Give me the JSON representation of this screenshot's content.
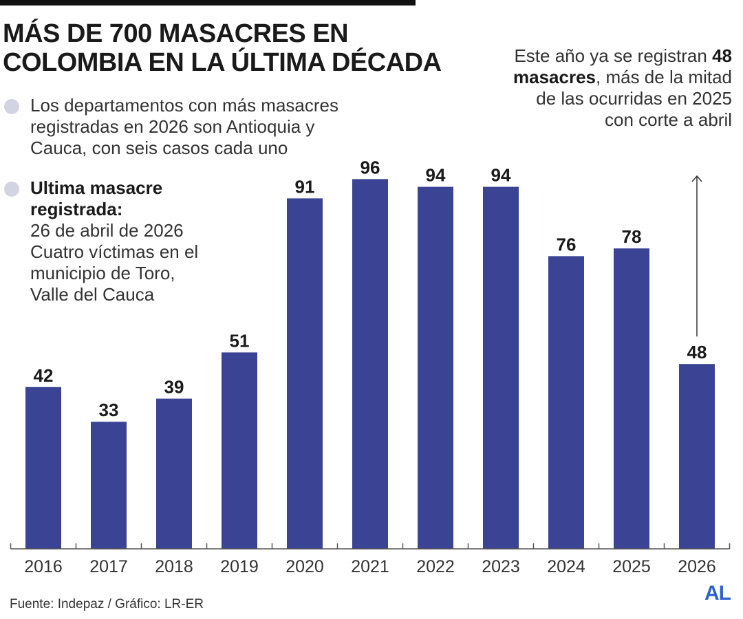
{
  "header": {
    "title_line1": "MÁS DE 700 MASACRES EN",
    "title_line2": "COLOMBIA EN LA ÚLTIMA DÉCADA"
  },
  "notes": {
    "note1_line1": "Los departamentos con más masacres",
    "note1_line2": "registradas en 2026 son Antioquia y",
    "note1_line3": "Cauca, con seis casos cada uno",
    "note2_title_line1": "Ultima masacre",
    "note2_title_line2": "registrada:",
    "note2_line1": "26 de abril de 2026",
    "note2_line2": "Cuatro víctimas en el",
    "note2_line3": "municipio de Toro,",
    "note2_line4": "Valle del Cauca"
  },
  "annotation": {
    "pre": "Este año ya se registran",
    "highlight": "48 masacres",
    "post": ", más de la mitad de las ocurridas en 2025 con corte a abril"
  },
  "footer": {
    "source": "Fuente: Indepaz / Gráfico: LR-ER",
    "logo": "AL"
  },
  "colors": {
    "bar": "#3b4494",
    "axis": "#555555",
    "dot": "#d2d4e4",
    "logo": "#2f62c8"
  },
  "chart_data": {
    "type": "bar",
    "title": "MÁS DE 700 MASACRES EN COLOMBIA EN LA ÚLTIMA DÉCADA",
    "categories": [
      "2016",
      "2017",
      "2018",
      "2019",
      "2020",
      "2021",
      "2022",
      "2023",
      "2024",
      "2025",
      "2026"
    ],
    "values": [
      42,
      33,
      39,
      51,
      91,
      96,
      94,
      94,
      76,
      78,
      48
    ],
    "xlabel": "",
    "ylabel": "",
    "ylim": [
      0,
      100
    ],
    "grid": false,
    "legend": "none"
  }
}
